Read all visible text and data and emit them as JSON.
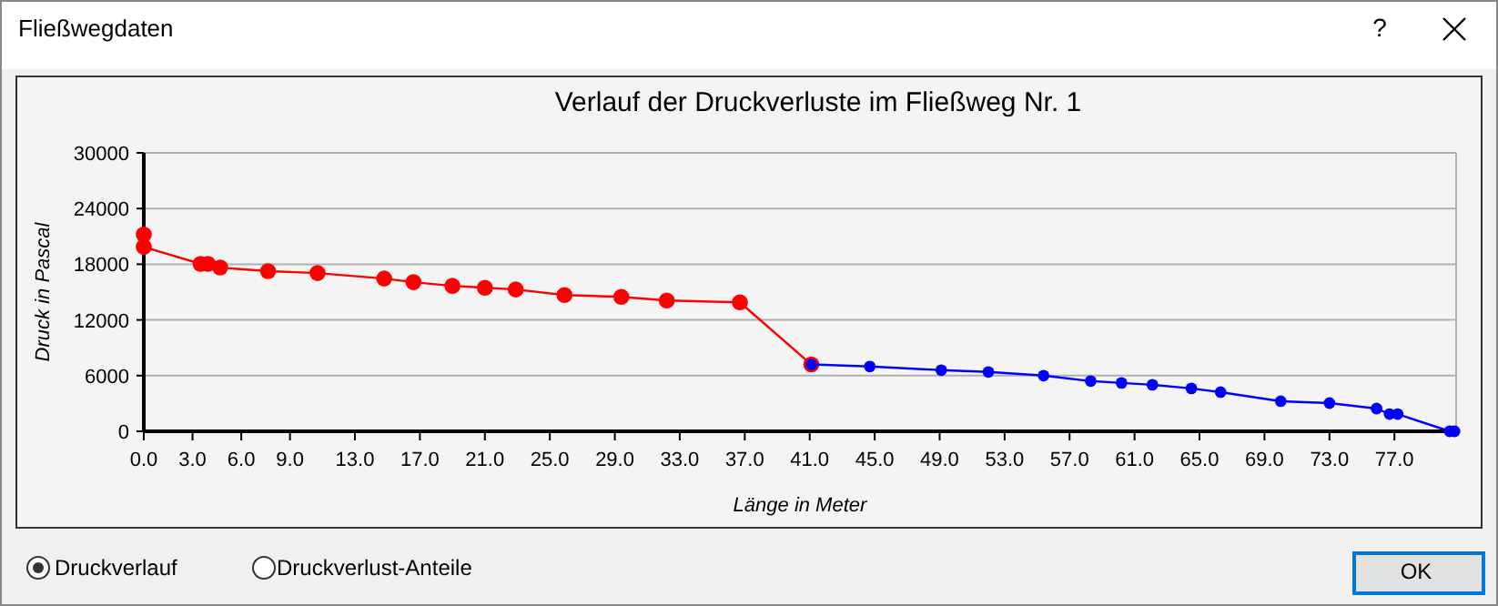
{
  "chart_data": {
    "type": "line",
    "title": "Verlauf der Druckverluste im Fließweg Nr. 1",
    "xlabel": "Länge in Meter",
    "ylabel": "Druck in Pascal",
    "annotations": [
      "Fließwegdaten",
      "?",
      "Druckverlauf",
      "Druckverlust-Anteile",
      "OK"
    ],
    "xlim": [
      0,
      80.8
    ],
    "ylim": [
      0,
      30000
    ],
    "xticks": [
      {
        "value": 0,
        "label": "0.0"
      },
      {
        "value": 3,
        "label": "3.0"
      },
      {
        "value": 6,
        "label": "6.0"
      },
      {
        "value": 9,
        "label": "9.0"
      },
      {
        "value": 13,
        "label": "13.0"
      },
      {
        "value": 17,
        "label": "17.0"
      },
      {
        "value": 21,
        "label": "21.0"
      },
      {
        "value": 25,
        "label": "25.0"
      },
      {
        "value": 29,
        "label": "29.0"
      },
      {
        "value": 33,
        "label": "33.0"
      },
      {
        "value": 37,
        "label": "37.0"
      },
      {
        "value": 41,
        "label": "41.0"
      },
      {
        "value": 45,
        "label": "45.0"
      },
      {
        "value": 49,
        "label": "49.0"
      },
      {
        "value": 53,
        "label": "53.0"
      },
      {
        "value": 57,
        "label": "57.0"
      },
      {
        "value": 61,
        "label": "61.0"
      },
      {
        "value": 65,
        "label": "65.0"
      },
      {
        "value": 69,
        "label": "69.0"
      },
      {
        "value": 73,
        "label": "73.0"
      },
      {
        "value": 77,
        "label": "77.0"
      }
    ],
    "yticks": [
      0,
      6000,
      12000,
      18000,
      24000,
      30000
    ],
    "grid": "y",
    "marker": "circle",
    "line_style": "solid",
    "series": [
      {
        "color": "#ff0000",
        "x": [
          0,
          0,
          3.5,
          3.95,
          4.7,
          7.65,
          10.7,
          14.8,
          16.6,
          19.0,
          21.0,
          22.9,
          25.9,
          29.4,
          32.2,
          36.7,
          41.1
        ],
        "values": [
          21200,
          19870,
          18040,
          18040,
          17640,
          17250,
          17050,
          16460,
          16070,
          15670,
          15470,
          15280,
          14680,
          14490,
          14090,
          13900,
          7200
        ]
      },
      {
        "color": "#0000ff",
        "x": [
          41.1,
          44.7,
          49.1,
          52.0,
          55.4,
          58.3,
          60.2,
          62.1,
          64.5,
          66.3,
          70.0,
          73.0,
          75.9,
          76.7,
          77.2,
          80.4,
          80.7
        ],
        "values": [
          7200,
          6980,
          6590,
          6390,
          6000,
          5410,
          5210,
          5010,
          4620,
          4220,
          3240,
          3040,
          2450,
          1860,
          1860,
          0,
          0
        ]
      }
    ]
  }
}
